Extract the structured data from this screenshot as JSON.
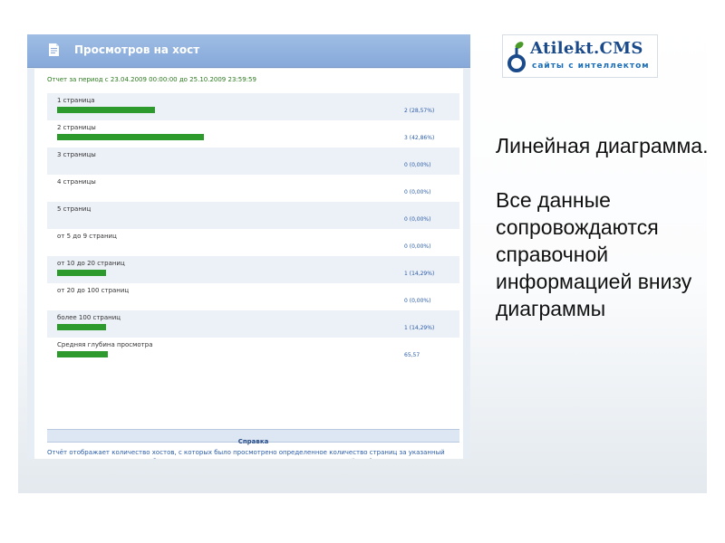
{
  "panel": {
    "title": "Просмотров на хост",
    "period": "Отчет за период с 23.04.2009 00:00:00 до 25.10.2009 23:59:59",
    "accent_color": "#2c9a2c",
    "rows": [
      {
        "label": "1 страница",
        "value_text": "2 (28,57%)",
        "fraction": 0.2857
      },
      {
        "label": "2 страницы",
        "value_text": "3 (42,86%)",
        "fraction": 0.4286
      },
      {
        "label": "3 страницы",
        "value_text": "0 (0,00%)",
        "fraction": 0
      },
      {
        "label": "4 страницы",
        "value_text": "0 (0,00%)",
        "fraction": 0
      },
      {
        "label": "5 страниц",
        "value_text": "0 (0,00%)",
        "fraction": 0
      },
      {
        "label": "от 5 до 9 страниц",
        "value_text": "0 (0,00%)",
        "fraction": 0
      },
      {
        "label": "от 10 до 20 страниц",
        "value_text": "1 (14,29%)",
        "fraction": 0.1429
      },
      {
        "label": "от 20 до 100 страниц",
        "value_text": "0 (0,00%)",
        "fraction": 0
      },
      {
        "label": "более 100 страниц",
        "value_text": "1 (14,29%)",
        "fraction": 0.1429
      },
      {
        "label": "Средняя глубина просмотра",
        "value_text": "65,57",
        "fraction": 0.1488
      }
    ],
    "help_title": "Справка",
    "help_text": "Отчёт отображает количество хостов, с которых было просмотрено определенное количество страниц за указанный период времени. Отчет может быть представлен в виде диаграммы или графика. Готовый отчёт можно распечатать или экспортировать в CSV."
  },
  "logo": {
    "name": "Atilekt.CMS",
    "tagline": "сайты с интеллектом"
  },
  "slide": {
    "heading": "Линейная диаграмма.",
    "body": "Все данные сопровождаются справочной информацией внизу диаграммы"
  }
}
